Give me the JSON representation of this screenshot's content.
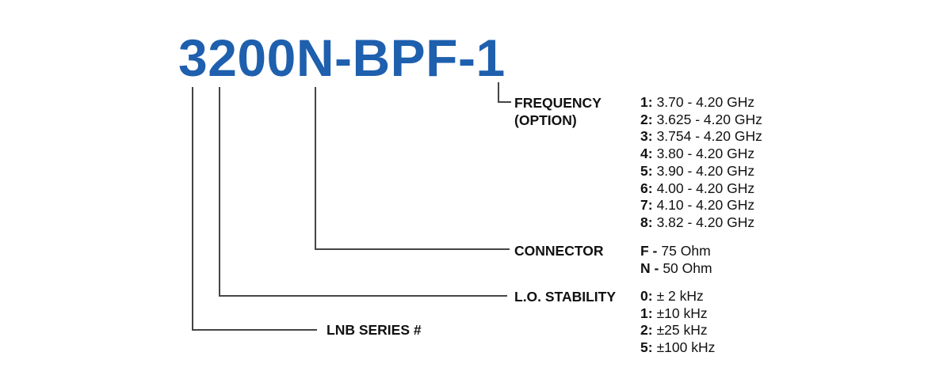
{
  "part_number": "3200N-BPF-1",
  "colors": {
    "part_number_blue": "#1e5fae",
    "bracket_line_gray": "#454545",
    "text_black": "#111111",
    "background": "#ffffff"
  },
  "frequency": {
    "label_line1": "FREQUENCY",
    "label_line2": "(OPTION)",
    "options": [
      {
        "key": "1:",
        "value": "3.70 - 4.20 GHz"
      },
      {
        "key": "2:",
        "value": "3.625 - 4.20 GHz"
      },
      {
        "key": "3:",
        "value": "3.754 - 4.20 GHz"
      },
      {
        "key": "4:",
        "value": "3.80 - 4.20 GHz"
      },
      {
        "key": "5:",
        "value": "3.90 - 4.20 GHz"
      },
      {
        "key": "6:",
        "value": "4.00 - 4.20 GHz"
      },
      {
        "key": "7:",
        "value": "4.10 - 4.20 GHz"
      },
      {
        "key": "8:",
        "value": "3.82 - 4.20 GHz"
      }
    ]
  },
  "connector": {
    "label": "CONNECTOR",
    "options": [
      {
        "key": "F -",
        "value": "75 Ohm"
      },
      {
        "key": "N -",
        "value": "50 Ohm"
      }
    ]
  },
  "lo_stability": {
    "label": "L.O. STABILITY",
    "options": [
      {
        "key": "0:",
        "value": "± 2 kHz"
      },
      {
        "key": "1:",
        "value": "±10 kHz"
      },
      {
        "key": "2:",
        "value": "±25 kHz"
      },
      {
        "key": "5:",
        "value": "±100 kHz"
      }
    ]
  },
  "lnb_series": {
    "label": "LNB SERIES #"
  }
}
